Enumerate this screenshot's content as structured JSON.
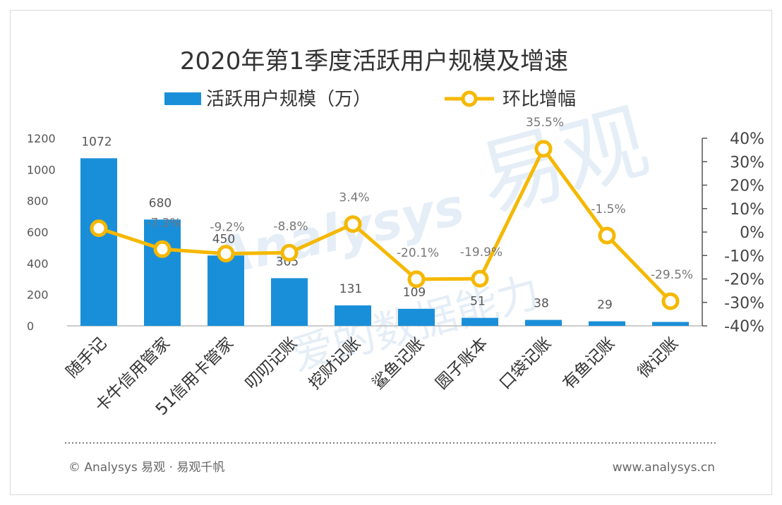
{
  "chart_data": {
    "type": "bar+line",
    "title": "2020年第1季度活跃用户规模及增速",
    "categories": [
      "随手记",
      "卡牛信用管家",
      "51信用卡管家",
      "叨叨记账",
      "挖财记账",
      "鲨鱼记账",
      "圆子账本",
      "口袋记账",
      "有鱼记账",
      "微记账"
    ],
    "series": [
      {
        "name": "活跃用户规模（万）",
        "type": "bar",
        "axis": "left",
        "color": "#1a8fd9",
        "values": [
          1072,
          680,
          450,
          305,
          131,
          109,
          51,
          38,
          29,
          25
        ],
        "labels": [
          "1072",
          "680",
          "450",
          "305",
          "131",
          "109",
          "51",
          "38",
          "29",
          ""
        ]
      },
      {
        "name": "环比增幅",
        "type": "line",
        "axis": "right",
        "color": "#f5b800",
        "values": [
          1.6,
          -7.3,
          -9.2,
          -8.8,
          3.4,
          -20.1,
          -19.9,
          35.5,
          -1.5,
          -29.5
        ],
        "labels": [
          "",
          "-7.3%",
          "-9.2%",
          "-8.8%",
          "3.4%",
          "-20.1%",
          "-19.9%",
          "35.5%",
          "-1.5%",
          "-29.5%"
        ]
      }
    ],
    "y_left": {
      "min": 0,
      "max": 1200,
      "ticks": [
        "0",
        "200",
        "400",
        "600",
        "800",
        "1000",
        "1200"
      ]
    },
    "y_right": {
      "min": -40,
      "max": 40,
      "ticks": [
        "-40%",
        "-30%",
        "-20%",
        "-10%",
        "0%",
        "10%",
        "20%",
        "30%",
        "40%"
      ]
    },
    "legend": [
      "活跃用户规模（万）",
      "环比增幅"
    ],
    "legend_position": "top-center"
  },
  "watermark": {
    "brand": "易观",
    "latin": "Analysys",
    "slogan": "爱的数据能力"
  },
  "footer": {
    "copyright": "© Analysys 易观 · 易观千帆",
    "url": "www.analysys.cn"
  }
}
